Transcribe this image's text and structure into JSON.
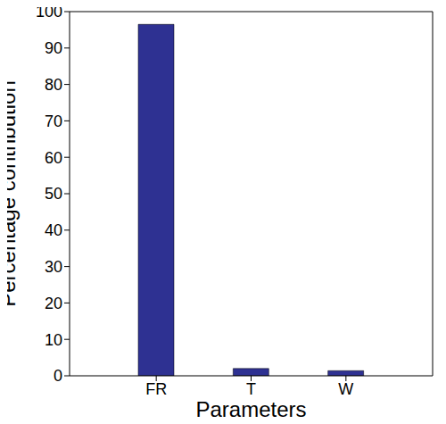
{
  "chart_data": {
    "type": "bar",
    "categories": [
      "FR",
      "T",
      "W"
    ],
    "values": [
      96.5,
      2.0,
      1.4
    ],
    "color": "#2e3192",
    "xlabel": "Parameters",
    "ylabel": "Percentage contribution",
    "ylim": [
      0,
      100
    ],
    "yticks": [
      0,
      10,
      20,
      30,
      40,
      50,
      60,
      70,
      80,
      90,
      100
    ],
    "grid": false
  }
}
